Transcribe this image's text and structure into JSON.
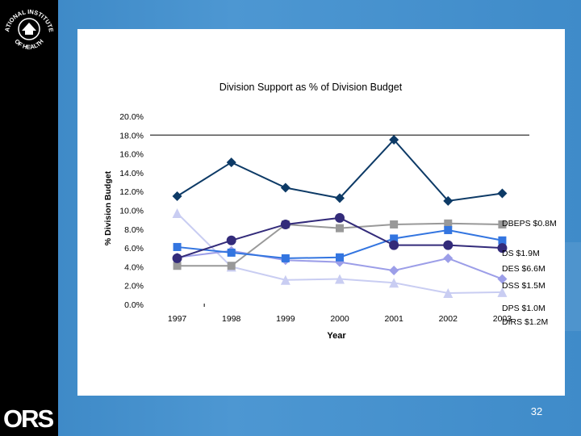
{
  "logos": {
    "nih_text": "NATIONAL INSTITUTES OF HEALTH",
    "ors_text": "ORS"
  },
  "slide_number": "32",
  "chart_data": {
    "type": "line",
    "title": "Division Support as % of Division Budget",
    "xlabel": "Year",
    "ylabel": "% Division Budget",
    "x": [
      "1997",
      "1998",
      "1999",
      "2000",
      "2001",
      "2002",
      "2003"
    ],
    "yticks": [
      "0.0%",
      "2.0%",
      "4.0%",
      "6.0%",
      "8.0%",
      "10.0%",
      "12.0%",
      "14.0%",
      "16.0%",
      "18.0%",
      "20.0%"
    ],
    "ylim": [
      0,
      20
    ],
    "reference_line": 18,
    "grid": false,
    "legend": "right, inline labels at series end",
    "series": [
      {
        "name": "DBEPS $0.8M",
        "color": "#0d3a66",
        "marker": "diamond",
        "values": [
          11.5,
          15.1,
          12.4,
          11.3,
          17.5,
          11.0,
          11.8
        ]
      },
      {
        "name": "DS $1.9M",
        "color": "#999999",
        "marker": "square",
        "values": [
          4.1,
          4.1,
          8.5,
          8.1,
          8.5,
          8.6,
          8.5
        ]
      },
      {
        "name": "DES $6.6M",
        "color": "#3375e0",
        "marker": "square",
        "values": [
          6.1,
          5.5,
          4.9,
          5.0,
          7.0,
          7.9,
          6.8
        ]
      },
      {
        "name": "DSS $1.5M",
        "color": "#332b7a",
        "marker": "circle",
        "values": [
          4.9,
          6.8,
          8.5,
          9.2,
          6.3,
          6.3,
          6.0
        ]
      },
      {
        "name": "DPS $1.0M",
        "color": "#9c9ee8",
        "marker": "diamond",
        "values": [
          5.0,
          5.7,
          4.7,
          4.5,
          3.6,
          4.9,
          2.7
        ]
      },
      {
        "name": "DIRS $1.2M",
        "color": "#c9cdf2",
        "marker": "triangle",
        "values": [
          9.7,
          4.0,
          2.6,
          2.7,
          2.3,
          1.2,
          1.3
        ]
      }
    ]
  }
}
